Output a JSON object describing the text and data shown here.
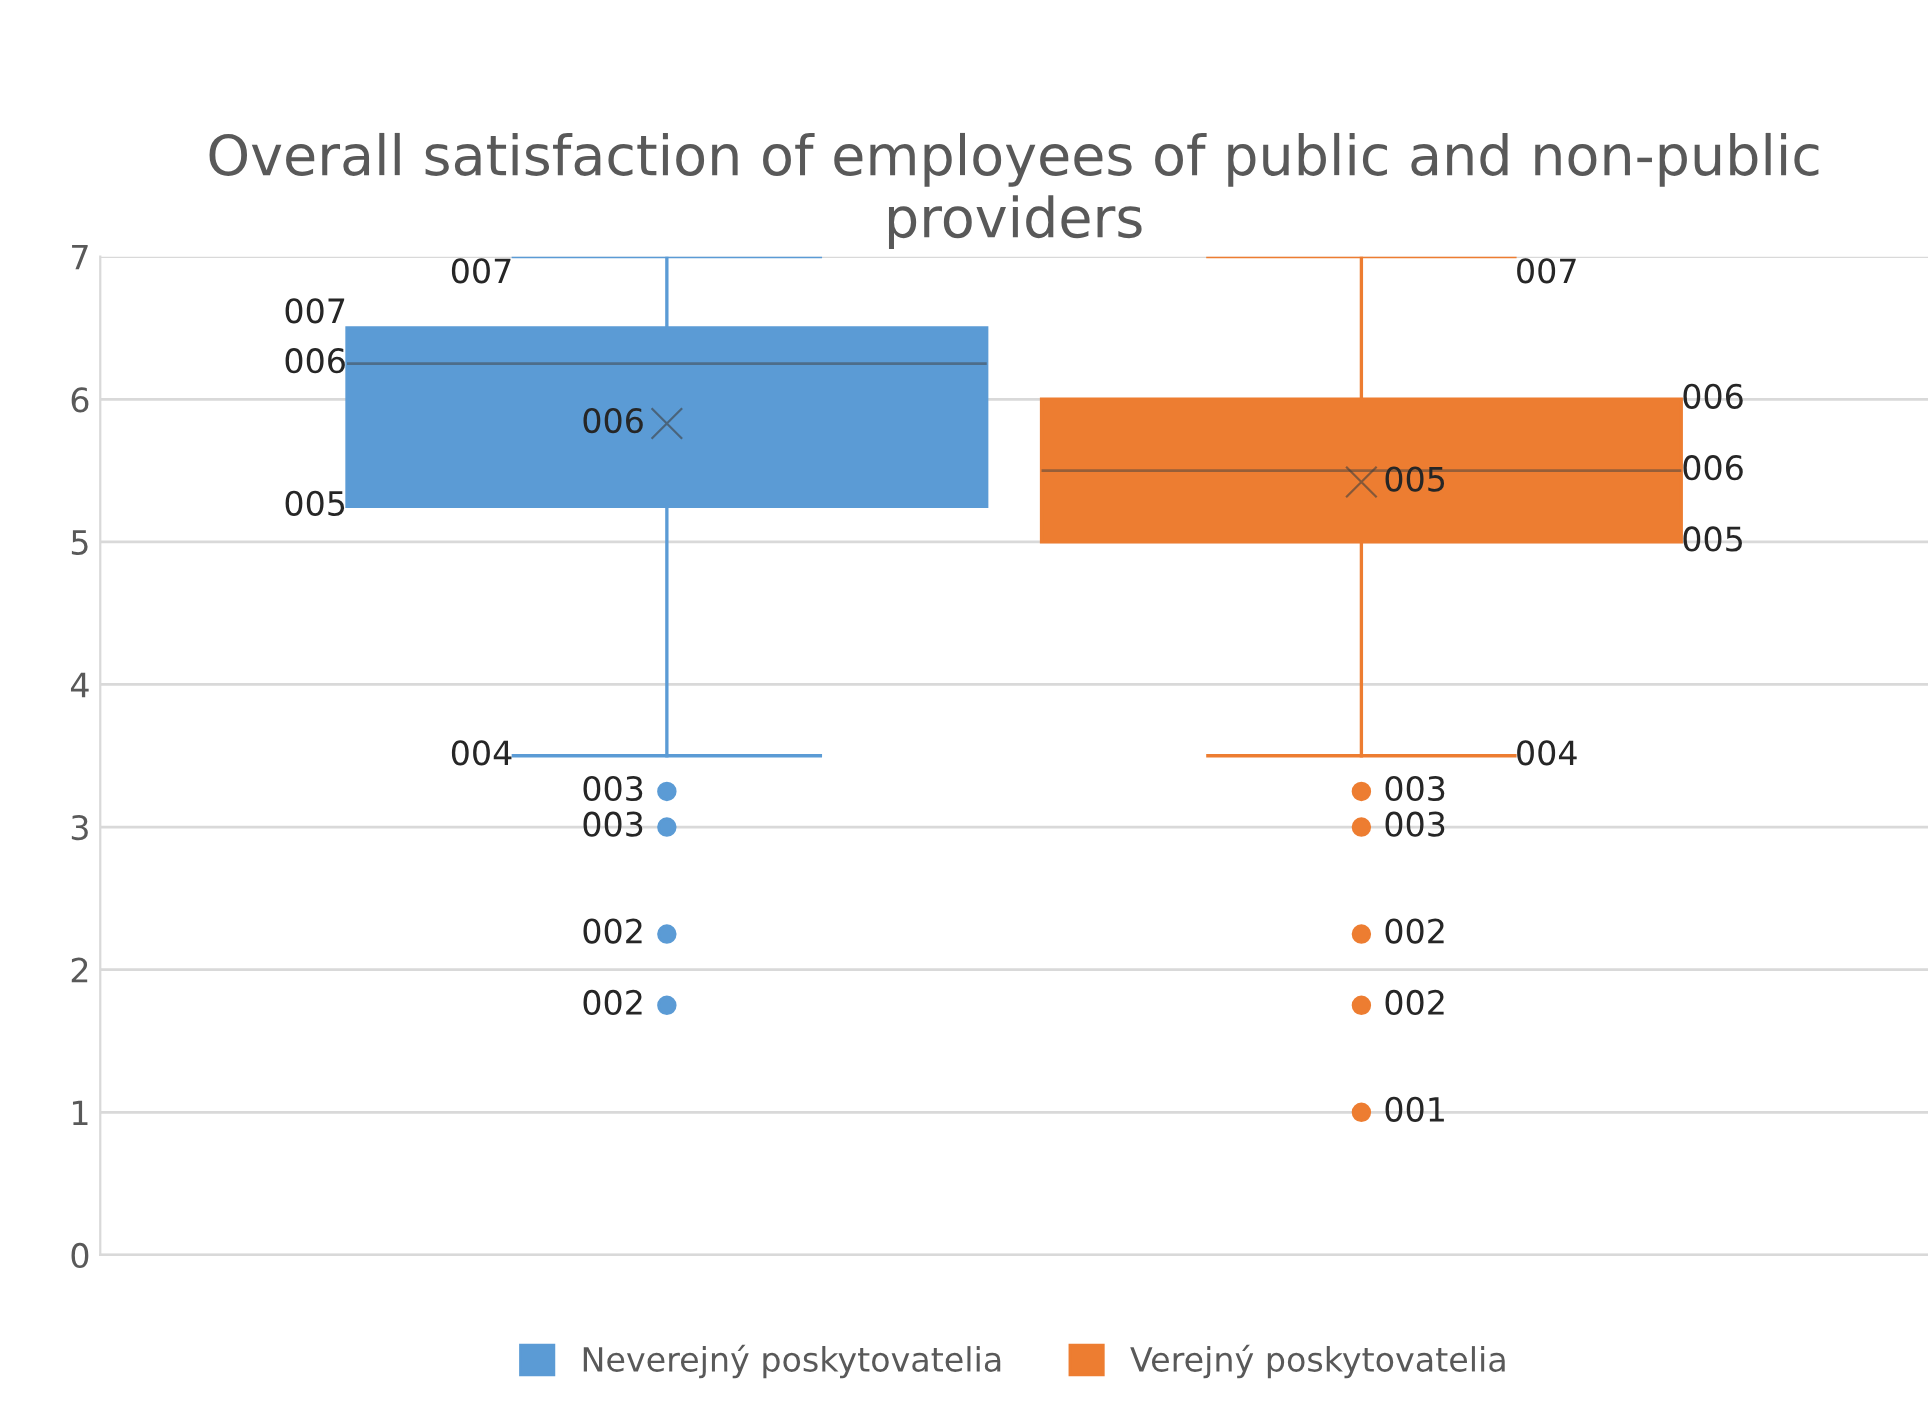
{
  "chart_data": {
    "type": "box",
    "title": "Overall satisfaction of employees of public and non-public providers",
    "categories": [
      null
    ],
    "series": [
      {
        "name": "Neverejný poskytovatelia",
        "color": "#5b9bd5",
        "boxes": [
          {
            "low": 3.5,
            "q1": 5.25,
            "median": 6.25,
            "q3": 6.5,
            "high": 7,
            "mean": 5.83,
            "outliers": [
              3.25,
              3,
              2.25,
              1.75
            ]
          }
        ],
        "value_labels": [
          [
            "004",
            "005",
            "006",
            "007",
            "007",
            "006",
            "003",
            "003",
            "002",
            "002"
          ]
        ]
      },
      {
        "name": "Verejný poskytovatelia",
        "color": "#ed7d31",
        "boxes": [
          {
            "low": 3.5,
            "q1": 5,
            "median": 5.5,
            "q3": 6,
            "high": 7,
            "mean": 5.42,
            "outliers": [
              3.25,
              3,
              2.25,
              1.75,
              1
            ]
          }
        ],
        "value_labels": [
          [
            "004",
            "005",
            "006",
            "006",
            "007",
            "005",
            "003",
            "003",
            "002",
            "002",
            "001"
          ]
        ]
      }
    ],
    "ylim": [
      0,
      7
    ],
    "yticks": [
      0,
      1,
      2,
      3,
      4,
      5,
      6,
      7
    ],
    "grid": "y",
    "legend": "bottom",
    "marker": "circle"
  }
}
